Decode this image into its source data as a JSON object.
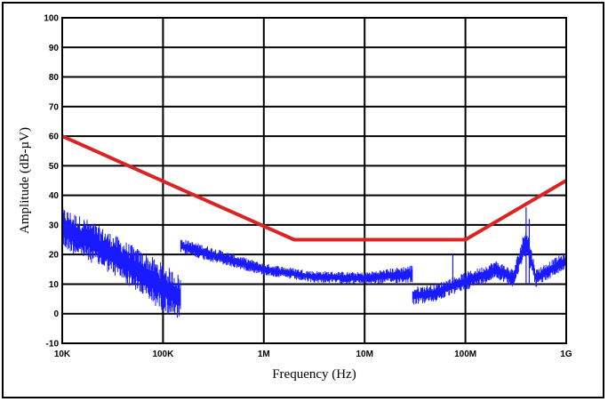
{
  "chart_data": {
    "type": "line",
    "title": "",
    "xlabel": "Frequency (Hz)",
    "ylabel": "Amplitude (dB-µV)",
    "x_scale": "log",
    "xlim": [
      10000,
      1000000000
    ],
    "ylim": [
      -10,
      100
    ],
    "x_ticks": [
      {
        "value": 10000,
        "label": "10K"
      },
      {
        "value": 100000,
        "label": "100K"
      },
      {
        "value": 1000000,
        "label": "1M"
      },
      {
        "value": 10000000,
        "label": "10M"
      },
      {
        "value": 100000000,
        "label": "100M"
      },
      {
        "value": 1000000000,
        "label": "1G"
      }
    ],
    "y_ticks": [
      -10,
      0,
      10,
      20,
      30,
      40,
      50,
      60,
      70,
      80,
      90,
      100
    ],
    "grid": true,
    "series": [
      {
        "color": "#dd2222",
        "x": [
          10000,
          2000000,
          100000000,
          1000000000
        ],
        "y": [
          60,
          25,
          25,
          45
        ]
      },
      {
        "color": "#1a1aff",
        "noisy": true,
        "segments": [
          {
            "x": [
              10000,
              20000,
              40000,
              80000,
              150000
            ],
            "y_center": [
              29,
              24,
              18,
              11,
              5
            ],
            "spread": [
              7,
              7,
              7,
              8,
              8
            ]
          },
          {
            "x": [
              150000,
              300000,
              1000000,
              3000000,
              10000000,
              30000000
            ],
            "y_center": [
              23,
              20,
              15,
              12.5,
              12,
              13.5
            ],
            "spread": [
              2.5,
              2.5,
              2,
              2,
              2,
              3
            ]
          },
          {
            "x": [
              30000000,
              50000000,
              70000000,
              100000000,
              150000000,
              200000000,
              300000000,
              400000000,
              500000000,
              700000000,
              1000000000
            ],
            "y_center": [
              6,
              7,
              9,
              11,
              13,
              15,
              12,
              25,
              12,
              15,
              18
            ],
            "spread": [
              3,
              3,
              3,
              3,
              3,
              3,
              3,
              5,
              3,
              3,
              3
            ]
          }
        ]
      }
    ]
  }
}
